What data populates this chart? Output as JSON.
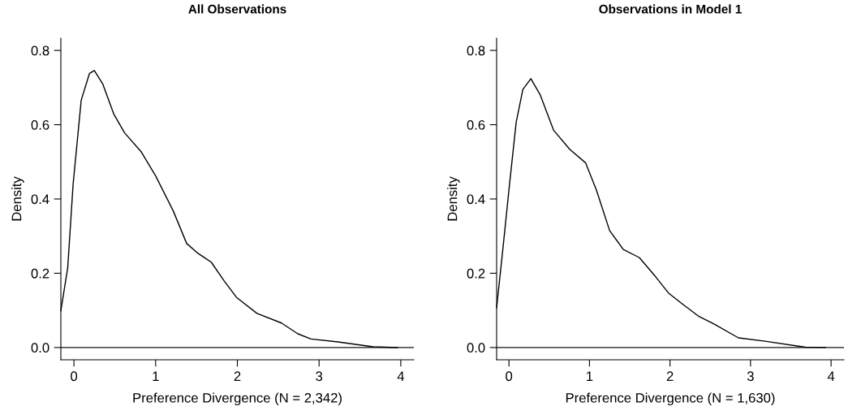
{
  "chart_data": [
    {
      "type": "line",
      "title": "All Observations",
      "xlabel": "Preference Divergence (N = 2,342)",
      "ylabel": "Density",
      "x": [
        -0.16,
        -0.076,
        -0.01,
        0.089,
        0.19,
        0.25,
        0.354,
        0.487,
        0.62,
        0.82,
        1.0,
        1.215,
        1.38,
        1.51,
        1.68,
        1.84,
        1.99,
        2.24,
        2.54,
        2.74,
        2.9,
        3.23,
        3.66,
        3.96
      ],
      "series": [
        {
          "color": "#000000",
          "values": [
            0.099,
            0.215,
            0.44,
            0.666,
            0.738,
            0.746,
            0.709,
            0.629,
            0.578,
            0.528,
            0.462,
            0.368,
            0.28,
            0.255,
            0.23,
            0.179,
            0.135,
            0.092,
            0.066,
            0.037,
            0.023,
            0.015,
            0.002,
            0.0
          ]
        }
      ],
      "xlim": [
        -0.16,
        4.16
      ],
      "ylim": [
        -0.033,
        0.833
      ],
      "xticks": [
        0,
        1,
        2,
        3,
        4
      ],
      "yticks": [
        {
          "value": 0,
          "label": "0.0"
        },
        0.2,
        0.4,
        0.6,
        0.8
      ],
      "ref_lines": [
        {
          "axis": "y",
          "value": 0,
          "color": "#555555"
        }
      ],
      "grid": false,
      "legend": false
    },
    {
      "type": "line",
      "title": "Observations in Model 1",
      "xlabel": "Preference Divergence (N = 1,630)",
      "ylabel": "Density",
      "x": [
        -0.153,
        -0.076,
        0.007,
        0.09,
        0.173,
        0.272,
        0.389,
        0.555,
        0.754,
        0.953,
        1.086,
        1.25,
        1.42,
        1.62,
        1.82,
        1.98,
        2.15,
        2.35,
        2.55,
        2.85,
        3.18,
        3.68,
        3.93
      ],
      "series": [
        {
          "color": "#000000",
          "values": [
            0.107,
            0.264,
            0.439,
            0.607,
            0.695,
            0.724,
            0.68,
            0.585,
            0.534,
            0.497,
            0.424,
            0.315,
            0.264,
            0.242,
            0.191,
            0.147,
            0.118,
            0.085,
            0.063,
            0.026,
            0.017,
            0.001,
            0.0
          ]
        }
      ],
      "xlim": [
        -0.153,
        4.16
      ],
      "ylim": [
        -0.033,
        0.833
      ],
      "xticks": [
        0,
        1,
        2,
        3,
        4
      ],
      "yticks": [
        {
          "value": 0,
          "label": "0.0"
        },
        0.2,
        0.4,
        0.6,
        0.8
      ],
      "ref_lines": [
        {
          "axis": "y",
          "value": 0,
          "color": "#555555"
        }
      ],
      "grid": false,
      "legend": false
    }
  ]
}
